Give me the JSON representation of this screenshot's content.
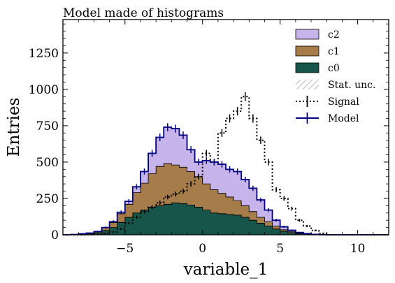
{
  "chart_data": {
    "type": "histogram",
    "title": "Model made of histograms",
    "xlabel": "variable_1",
    "ylabel": "Entries",
    "xlim": [
      -9,
      12
    ],
    "ylim": [
      0,
      1480
    ],
    "xticks": [
      -5,
      0,
      5,
      10
    ],
    "xtick_labels": [
      "−5",
      "0",
      "5",
      "10"
    ],
    "yticks": [
      0,
      250,
      500,
      750,
      1000,
      1250
    ],
    "ytick_labels": [
      "0",
      "250",
      "500",
      "750",
      "1000",
      "1250"
    ],
    "grid": false,
    "legend_position": "top-right",
    "bin_edges": [
      -9,
      -8.5,
      -8,
      -7.5,
      -7,
      -6.5,
      -6,
      -5.5,
      -5,
      -4.5,
      -4,
      -3.5,
      -3,
      -2.5,
      -2,
      -1.5,
      -1,
      -0.5,
      0,
      0.5,
      1,
      1.5,
      2,
      2.5,
      3,
      3.5,
      4,
      4.5,
      5,
      5.5,
      6,
      6.5,
      7,
      7.5,
      8,
      8.5,
      9,
      9.5,
      10,
      10.5,
      11,
      11.5,
      12
    ],
    "series": [
      {
        "name": "c0",
        "color": "#17544a",
        "role": "stack",
        "values": [
          0,
          2,
          5,
          8,
          15,
          30,
          50,
          85,
          120,
          150,
          170,
          190,
          200,
          210,
          220,
          215,
          205,
          190,
          170,
          150,
          145,
          140,
          135,
          120,
          100,
          80,
          60,
          40,
          25,
          15,
          8,
          4,
          2,
          1,
          0,
          0,
          0,
          0,
          0,
          0,
          0,
          0
        ]
      },
      {
        "name": "c1",
        "color": "#a67c4b",
        "role": "stack",
        "values": [
          0,
          0,
          2,
          4,
          8,
          20,
          35,
          60,
          90,
          140,
          185,
          230,
          270,
          280,
          260,
          250,
          230,
          210,
          180,
          160,
          140,
          120,
          100,
          80,
          60,
          40,
          30,
          20,
          10,
          6,
          3,
          1,
          0,
          0,
          0,
          0,
          0,
          0,
          0,
          0,
          0,
          0
        ]
      },
      {
        "name": "c2",
        "color": "#c6b4ea",
        "role": "stack",
        "values": [
          0,
          0,
          0,
          0,
          0,
          0,
          5,
          10,
          20,
          40,
          80,
          140,
          200,
          250,
          250,
          220,
          150,
          100,
          160,
          190,
          200,
          190,
          200,
          180,
          160,
          120,
          80,
          40,
          20,
          10,
          5,
          3,
          1,
          0,
          0,
          0,
          0,
          0,
          0,
          0,
          0,
          0
        ]
      },
      {
        "name": "Stat. unc.",
        "role": "band",
        "hatch": true
      },
      {
        "name": "Signal",
        "color": "#000000",
        "role": "line",
        "style": "dotted",
        "values": [
          0,
          0,
          0,
          2,
          5,
          10,
          20,
          40,
          80,
          120,
          160,
          190,
          220,
          260,
          280,
          300,
          350,
          400,
          560,
          500,
          700,
          800,
          850,
          950,
          800,
          650,
          500,
          310,
          250,
          180,
          100,
          60,
          30,
          10,
          0,
          0,
          0,
          0,
          0,
          0,
          0,
          0
        ]
      },
      {
        "name": "Model",
        "color": "#000080",
        "role": "line",
        "style": "solid",
        "values": [
          0,
          2,
          7,
          12,
          23,
          50,
          90,
          155,
          230,
          330,
          435,
          560,
          670,
          740,
          730,
          685,
          585,
          500,
          510,
          500,
          485,
          450,
          435,
          380,
          320,
          240,
          170,
          100,
          55,
          31,
          16,
          8,
          3,
          1,
          0,
          0,
          0,
          0,
          0,
          0,
          0,
          0
        ]
      }
    ]
  }
}
